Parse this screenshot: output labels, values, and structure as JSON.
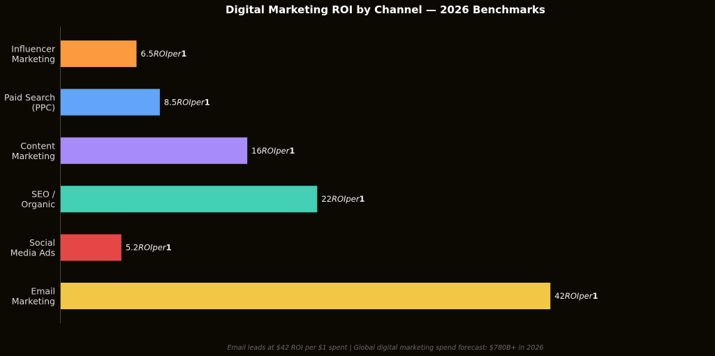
{
  "chart_data": {
    "type": "bar",
    "orientation": "horizontal",
    "title": "Digital Marketing ROI by Channel — 2026 Benchmarks",
    "xlabel": "",
    "ylabel": "",
    "categories": [
      [
        "Influencer",
        "Marketing"
      ],
      [
        "Paid Search",
        "(PPC)"
      ],
      [
        "Content",
        "Marketing"
      ],
      [
        "SEO /",
        "Organic"
      ],
      [
        "Social",
        "Media Ads"
      ],
      [
        "Email",
        "Marketing"
      ]
    ],
    "values": [
      6.5,
      8.5,
      16,
      22,
      5.2,
      42
    ],
    "value_labels": [
      "6.5",
      "8.5",
      "16",
      "22",
      "5.2",
      "42"
    ],
    "label_suffix_italic": "ROIper",
    "label_suffix_bold": "1",
    "colors": [
      "#fb9a3e",
      "#60a5fa",
      "#a78bfa",
      "#43d0b5",
      "#e64646",
      "#f3c746"
    ],
    "xlim": [
      0,
      44.5
    ],
    "grid": false,
    "footnote": "Email leads at $42 ROI per $1 spent | Global digital marketing spend forecast: $780B+ in 2026"
  }
}
